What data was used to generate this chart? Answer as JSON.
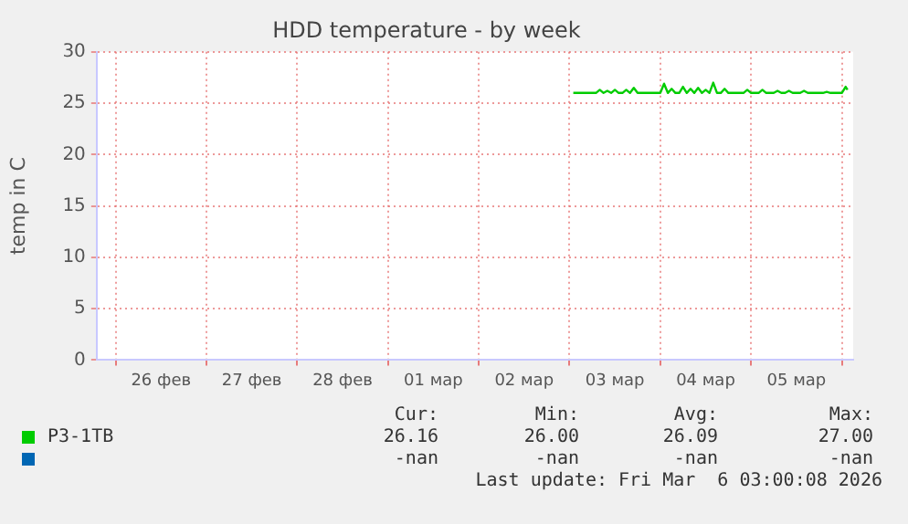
{
  "chart_data": {
    "type": "line",
    "title": "HDD temperature - by week",
    "ylabel": "temp in C",
    "xlim": [
      "2026-02-25T19:00",
      "2026-03-06T03:00"
    ],
    "xticks": [
      {
        "value": "2026-02-26T00:00",
        "label": null
      },
      {
        "value": "2026-02-26T12:00",
        "label": "26 фев"
      },
      {
        "value": "2026-02-27T00:00",
        "label": null
      },
      {
        "value": "2026-02-27T12:00",
        "label": "27 фев"
      },
      {
        "value": "2026-02-28T00:00",
        "label": null
      },
      {
        "value": "2026-02-28T12:00",
        "label": "28 фев"
      },
      {
        "value": "2026-03-01T00:00",
        "label": null
      },
      {
        "value": "2026-03-01T12:00",
        "label": "01 мар"
      },
      {
        "value": "2026-03-02T00:00",
        "label": null
      },
      {
        "value": "2026-03-02T12:00",
        "label": "02 мар"
      },
      {
        "value": "2026-03-03T00:00",
        "label": null
      },
      {
        "value": "2026-03-03T12:00",
        "label": "03 мар"
      },
      {
        "value": "2026-03-04T00:00",
        "label": null
      },
      {
        "value": "2026-03-04T12:00",
        "label": "04 мар"
      },
      {
        "value": "2026-03-05T00:00",
        "label": null
      },
      {
        "value": "2026-03-05T12:00",
        "label": "05 мар"
      },
      {
        "value": "2026-03-06T00:00",
        "label": null
      }
    ],
    "ylim": [
      0,
      30
    ],
    "yticks": [
      0,
      5,
      10,
      15,
      20,
      25,
      30
    ],
    "grid": true,
    "legend": "bottom",
    "marker": "none",
    "x": [
      "2026-03-03T01:00",
      "2026-03-03T07:00",
      "2026-03-03T08:00",
      "2026-03-03T09:00",
      "2026-03-03T10:00",
      "2026-03-03T11:00",
      "2026-03-03T12:00",
      "2026-03-03T13:00",
      "2026-03-03T14:00",
      "2026-03-03T15:00",
      "2026-03-03T16:00",
      "2026-03-03T17:00",
      "2026-03-03T18:00",
      "2026-03-04T00:00",
      "2026-03-04T01:00",
      "2026-03-04T02:00",
      "2026-03-04T03:00",
      "2026-03-04T04:00",
      "2026-03-04T05:00",
      "2026-03-04T06:00",
      "2026-03-04T07:00",
      "2026-03-04T08:00",
      "2026-03-04T09:00",
      "2026-03-04T10:00",
      "2026-03-04T11:00",
      "2026-03-04T12:00",
      "2026-03-04T13:00",
      "2026-03-04T14:00",
      "2026-03-04T15:00",
      "2026-03-04T16:00",
      "2026-03-04T17:00",
      "2026-03-04T18:00",
      "2026-03-04T22:00",
      "2026-03-04T23:00",
      "2026-03-05T00:00",
      "2026-03-05T02:00",
      "2026-03-05T03:00",
      "2026-03-05T04:00",
      "2026-03-05T06:00",
      "2026-03-05T07:00",
      "2026-03-05T08:00",
      "2026-03-05T09:00",
      "2026-03-05T10:00",
      "2026-03-05T11:00",
      "2026-03-05T13:00",
      "2026-03-05T14:00",
      "2026-03-05T15:00",
      "2026-03-05T19:00",
      "2026-03-05T20:00",
      "2026-03-05T21:00",
      "2026-03-06T00:00",
      "2026-03-06T01:00",
      "2026-03-06T01:30"
    ],
    "series": [
      {
        "name": "P3-1TB",
        "color": "#00cc00",
        "values": [
          26,
          26,
          26.3,
          26,
          26.2,
          26,
          26.3,
          26,
          26,
          26.3,
          26,
          26.5,
          26,
          26,
          26.9,
          26,
          26.4,
          26,
          26,
          26.6,
          26,
          26.4,
          26,
          26.5,
          26,
          26.3,
          26,
          27,
          26,
          26,
          26.4,
          26,
          26,
          26.3,
          26,
          26,
          26.3,
          26,
          26,
          26.2,
          26,
          26,
          26.2,
          26,
          26,
          26.2,
          26,
          26,
          26.1,
          26,
          26,
          26.6,
          26.3
        ]
      },
      {
        "color": "#0066b3",
        "values": [
          null,
          null,
          null,
          null,
          null,
          null,
          null,
          null,
          null,
          null,
          null,
          null,
          null,
          null,
          null,
          null,
          null,
          null,
          null,
          null,
          null,
          null,
          null,
          null,
          null,
          null,
          null,
          null,
          null,
          null,
          null,
          null,
          null,
          null,
          null,
          null,
          null,
          null,
          null,
          null,
          null,
          null,
          null,
          null,
          null,
          null,
          null,
          null,
          null,
          null,
          null,
          null,
          null
        ]
      }
    ],
    "annotations": [
      "Cur:",
      "Min:",
      "Avg:",
      "Max:",
      "26.16",
      "26.00",
      "26.09",
      "27.00",
      "-nan",
      "-nan",
      "-nan",
      "-nan",
      "Last update: Fri Mar  6 03:00:08 2026"
    ]
  }
}
